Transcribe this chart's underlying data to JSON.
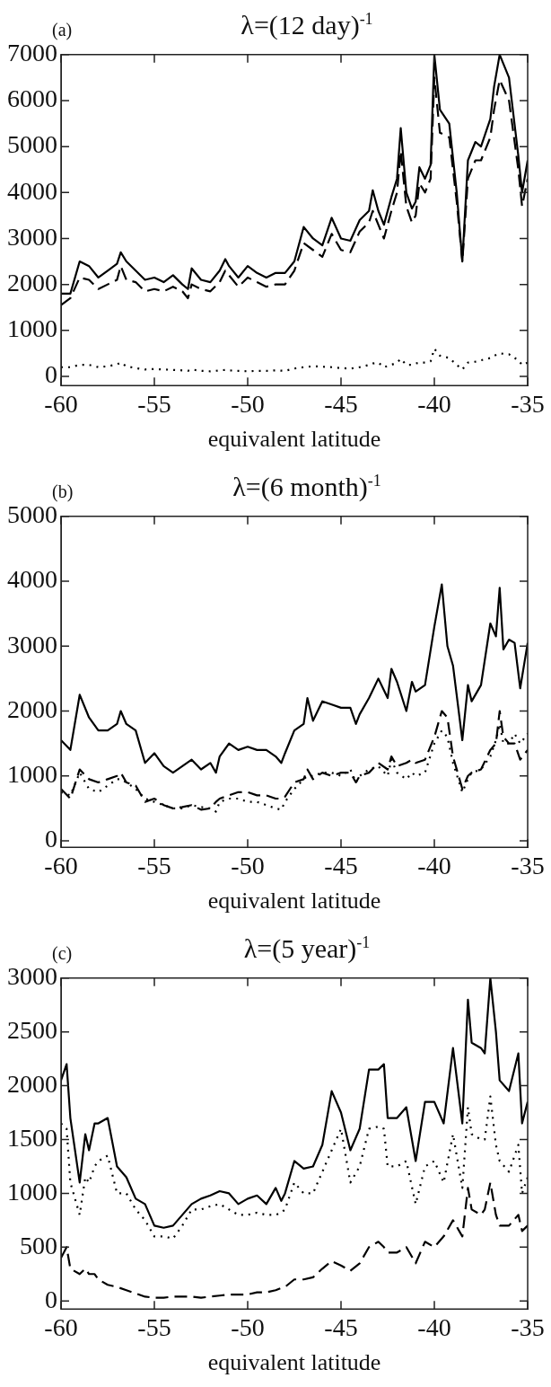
{
  "chart_data": [
    {
      "type": "line",
      "title": "λ=(12 day)$^{-1}$",
      "xlabel": "equivalent latitude",
      "annotations": [
        "(a)"
      ],
      "legend": false,
      "grid": false,
      "x": [
        -60,
        -59.5,
        -59,
        -58.5,
        -58,
        -57.5,
        -57,
        -56.8,
        -56.5,
        -56,
        -55.5,
        -55,
        -54.5,
        -54,
        -53.5,
        -53.2,
        -53,
        -52.5,
        -52,
        -51.5,
        -51.2,
        -51,
        -50.5,
        -50,
        -49.5,
        -49,
        -48.5,
        -48,
        -47.5,
        -47,
        -46.5,
        -46,
        -45.5,
        -45,
        -44.5,
        -44,
        -43.5,
        -43.3,
        -43,
        -42.7,
        -42.3,
        -42,
        -41.8,
        -41.5,
        -41.2,
        -41,
        -40.8,
        -40.5,
        -40.2,
        -40,
        -39.7,
        -39.2,
        -38.8,
        -38.5,
        -38.2,
        -37.8,
        -37.5,
        -37,
        -36.8,
        -36.5,
        -36,
        -35.5,
        -35.3,
        -35
      ],
      "series": [
        {
          "color": "#000000",
          "line_style": "solid",
          "values": [
            1800,
            1800,
            2500,
            2400,
            2150,
            2300,
            2450,
            2700,
            2500,
            2300,
            2100,
            2150,
            2050,
            2200,
            2000,
            1900,
            2350,
            2100,
            2050,
            2300,
            2550,
            2400,
            2150,
            2400,
            2250,
            2150,
            2250,
            2250,
            2500,
            3250,
            3000,
            2850,
            3450,
            3000,
            2950,
            3400,
            3600,
            4050,
            3600,
            3300,
            3900,
            4300,
            5400,
            4000,
            3650,
            3800,
            4550,
            4300,
            4600,
            7000,
            5800,
            5500,
            4000,
            2500,
            4700,
            5100,
            5000,
            5600,
            6300,
            7000,
            6500,
            4800,
            4000,
            4700
          ]
        },
        {
          "color": "#000000",
          "line_style": "dashed",
          "values": [
            1550,
            1700,
            2150,
            2100,
            1900,
            2000,
            2100,
            2400,
            2100,
            2050,
            1850,
            1900,
            1850,
            1950,
            1850,
            1700,
            2000,
            1900,
            1850,
            2050,
            2300,
            2200,
            1950,
            2150,
            2050,
            1950,
            2000,
            2000,
            2300,
            2900,
            2750,
            2600,
            3100,
            2750,
            2700,
            3150,
            3350,
            3600,
            3300,
            3000,
            3600,
            4000,
            4900,
            3700,
            3350,
            3500,
            4200,
            4000,
            4300,
            6500,
            5300,
            5200,
            3800,
            2500,
            4300,
            4700,
            4700,
            5200,
            5800,
            6450,
            6000,
            4500,
            3700,
            4300
          ]
        },
        {
          "color": "#000000",
          "line_style": "dotted",
          "values": [
            200,
            200,
            250,
            250,
            200,
            220,
            260,
            300,
            220,
            180,
            150,
            160,
            150,
            140,
            130,
            120,
            150,
            120,
            110,
            130,
            140,
            130,
            120,
            110,
            120,
            120,
            130,
            120,
            170,
            200,
            220,
            210,
            200,
            180,
            170,
            200,
            250,
            280,
            300,
            200,
            250,
            300,
            380,
            250,
            250,
            280,
            300,
            300,
            330,
            600,
            450,
            400,
            250,
            150,
            300,
            320,
            350,
            400,
            450,
            500,
            480,
            350,
            250,
            300
          ]
        }
      ],
      "xlim": [
        -60,
        -35
      ],
      "xticks": [
        -60,
        -55,
        -50,
        -45,
        -40,
        -35
      ],
      "ylim": [
        -200,
        7000
      ],
      "yticks": [
        0,
        1000,
        2000,
        3000,
        4000,
        5000,
        6000,
        7000
      ]
    },
    {
      "type": "line",
      "title": "λ=(6 month)$^{-1}$",
      "xlabel": "equivalent latitude",
      "annotations": [
        "(b)"
      ],
      "legend": false,
      "grid": false,
      "x": [
        -60,
        -59.5,
        -59,
        -58.5,
        -58,
        -57.5,
        -57,
        -56.8,
        -56.5,
        -56,
        -55.5,
        -55,
        -54.5,
        -54,
        -53.5,
        -53,
        -52.5,
        -52,
        -51.7,
        -51.5,
        -51,
        -50.5,
        -50,
        -49.5,
        -49,
        -48.5,
        -48.2,
        -48,
        -47.5,
        -47,
        -46.8,
        -46.5,
        -46,
        -45.5,
        -45,
        -44.5,
        -44.2,
        -44,
        -43.5,
        -43,
        -42.5,
        -42.3,
        -42,
        -41.5,
        -41.2,
        -41,
        -40.5,
        -40,
        -39.6,
        -39.3,
        -39,
        -38.5,
        -38.2,
        -38,
        -37.5,
        -37,
        -36.7,
        -36.5,
        -36.3,
        -36,
        -35.7,
        -35.4,
        -35
      ],
      "series": [
        {
          "color": "#000000",
          "line_style": "solid",
          "values": [
            1550,
            1400,
            2250,
            1900,
            1700,
            1700,
            1800,
            2000,
            1800,
            1700,
            1200,
            1350,
            1150,
            1050,
            1150,
            1250,
            1100,
            1200,
            1050,
            1300,
            1500,
            1400,
            1450,
            1400,
            1400,
            1300,
            1200,
            1350,
            1700,
            1800,
            2200,
            1850,
            2150,
            2100,
            2050,
            2050,
            1800,
            1950,
            2200,
            2500,
            2200,
            2650,
            2450,
            2000,
            2450,
            2300,
            2400,
            3300,
            3950,
            3000,
            2700,
            1550,
            2400,
            2150,
            2400,
            3350,
            3150,
            3900,
            2950,
            3100,
            3050,
            2350,
            3050
          ]
        },
        {
          "color": "#000000",
          "line_style": "dashed",
          "values": [
            800,
            650,
            1100,
            950,
            900,
            950,
            1000,
            1050,
            900,
            850,
            600,
            650,
            550,
            500,
            520,
            550,
            480,
            500,
            600,
            650,
            700,
            750,
            750,
            700,
            700,
            650,
            650,
            680,
            900,
            950,
            1100,
            950,
            1050,
            1000,
            1050,
            1050,
            900,
            1000,
            1050,
            1200,
            1100,
            1300,
            1150,
            1200,
            1250,
            1200,
            1250,
            1600,
            2000,
            1900,
            1300,
            800,
            1000,
            1050,
            1100,
            1400,
            1500,
            2000,
            1600,
            1500,
            1500,
            1250,
            1400
          ]
        },
        {
          "color": "#000000",
          "line_style": "dotted",
          "values": [
            750,
            700,
            1050,
            800,
            750,
            850,
            950,
            950,
            900,
            800,
            650,
            600,
            550,
            500,
            500,
            550,
            520,
            500,
            450,
            600,
            650,
            650,
            600,
            600,
            550,
            500,
            480,
            600,
            800,
            950,
            1000,
            1000,
            1050,
            1050,
            1000,
            1100,
            900,
            1000,
            1100,
            1150,
            1000,
            1250,
            1050,
            950,
            1050,
            1000,
            1050,
            1500,
            1700,
            1600,
            1200,
            750,
            950,
            1050,
            1100,
            1300,
            1550,
            1800,
            1500,
            1500,
            1650,
            1500,
            1650
          ]
        }
      ],
      "xlim": [
        -60,
        -35
      ],
      "xticks": [
        -60,
        -55,
        -50,
        -45,
        -40,
        -35
      ],
      "ylim": [
        -100,
        5000
      ],
      "yticks": [
        0,
        1000,
        2000,
        3000,
        4000,
        5000
      ]
    },
    {
      "type": "line",
      "title": "λ=(5 year)$^{-1}$",
      "xlabel": "equivalent latitude",
      "annotations": [
        "(c)"
      ],
      "legend": false,
      "grid": false,
      "x": [
        -60,
        -59.7,
        -59.5,
        -59,
        -58.7,
        -58.5,
        -58.2,
        -58,
        -57.5,
        -57,
        -56.5,
        -56,
        -55.5,
        -55,
        -54.5,
        -54,
        -53.5,
        -53,
        -52.5,
        -52,
        -51.5,
        -51,
        -50.5,
        -50,
        -49.5,
        -49,
        -48.5,
        -48.2,
        -48,
        -47.5,
        -47,
        -46.5,
        -46,
        -45.5,
        -45,
        -44.5,
        -44,
        -43.5,
        -43,
        -42.7,
        -42.5,
        -42,
        -41.5,
        -41,
        -40.5,
        -40,
        -39.5,
        -39,
        -38.5,
        -38.2,
        -38,
        -37.5,
        -37.3,
        -37,
        -36.7,
        -36.5,
        -36,
        -35.5,
        -35.3,
        -35
      ],
      "series": [
        {
          "color": "#000000",
          "line_style": "solid",
          "values": [
            2050,
            2200,
            1700,
            1100,
            1550,
            1400,
            1650,
            1650,
            1700,
            1250,
            1150,
            950,
            900,
            700,
            680,
            700,
            800,
            900,
            950,
            980,
            1020,
            1000,
            900,
            950,
            980,
            900,
            1050,
            930,
            1000,
            1300,
            1230,
            1250,
            1450,
            1950,
            1750,
            1400,
            1600,
            2150,
            2150,
            2200,
            1700,
            1700,
            1800,
            1300,
            1850,
            1850,
            1650,
            2350,
            1650,
            2800,
            2400,
            2350,
            2300,
            3000,
            2500,
            2050,
            1950,
            2300,
            1650,
            1850
          ]
        },
        {
          "color": "#000000",
          "line_style": "dashed",
          "values": [
            400,
            500,
            300,
            250,
            300,
            250,
            250,
            200,
            150,
            130,
            100,
            70,
            40,
            30,
            30,
            40,
            40,
            40,
            30,
            40,
            50,
            60,
            60,
            60,
            80,
            80,
            100,
            120,
            130,
            200,
            200,
            220,
            300,
            370,
            330,
            280,
            350,
            500,
            550,
            500,
            450,
            450,
            500,
            350,
            550,
            500,
            600,
            750,
            600,
            1050,
            850,
            800,
            850,
            1100,
            800,
            700,
            700,
            800,
            650,
            700
          ]
        },
        {
          "color": "#000000",
          "line_style": "dotted",
          "values": [
            1650,
            1600,
            1100,
            800,
            1150,
            1100,
            1250,
            1300,
            1350,
            1000,
            1000,
            850,
            750,
            600,
            600,
            580,
            700,
            850,
            850,
            880,
            900,
            850,
            800,
            800,
            820,
            800,
            800,
            820,
            850,
            1100,
            1000,
            1000,
            1200,
            1400,
            1600,
            1100,
            1250,
            1600,
            1620,
            1600,
            1250,
            1250,
            1300,
            900,
            1250,
            1300,
            1100,
            1550,
            1050,
            1800,
            1550,
            1500,
            1500,
            1900,
            1450,
            1300,
            1200,
            1450,
            1000,
            1150
          ]
        }
      ],
      "xlim": [
        -60,
        -35
      ],
      "xticks": [
        -60,
        -55,
        -50,
        -45,
        -40,
        -35
      ],
      "ylim": [
        -75,
        3000
      ],
      "yticks": [
        0,
        500,
        1000,
        1500,
        2000,
        2500,
        3000
      ]
    }
  ]
}
